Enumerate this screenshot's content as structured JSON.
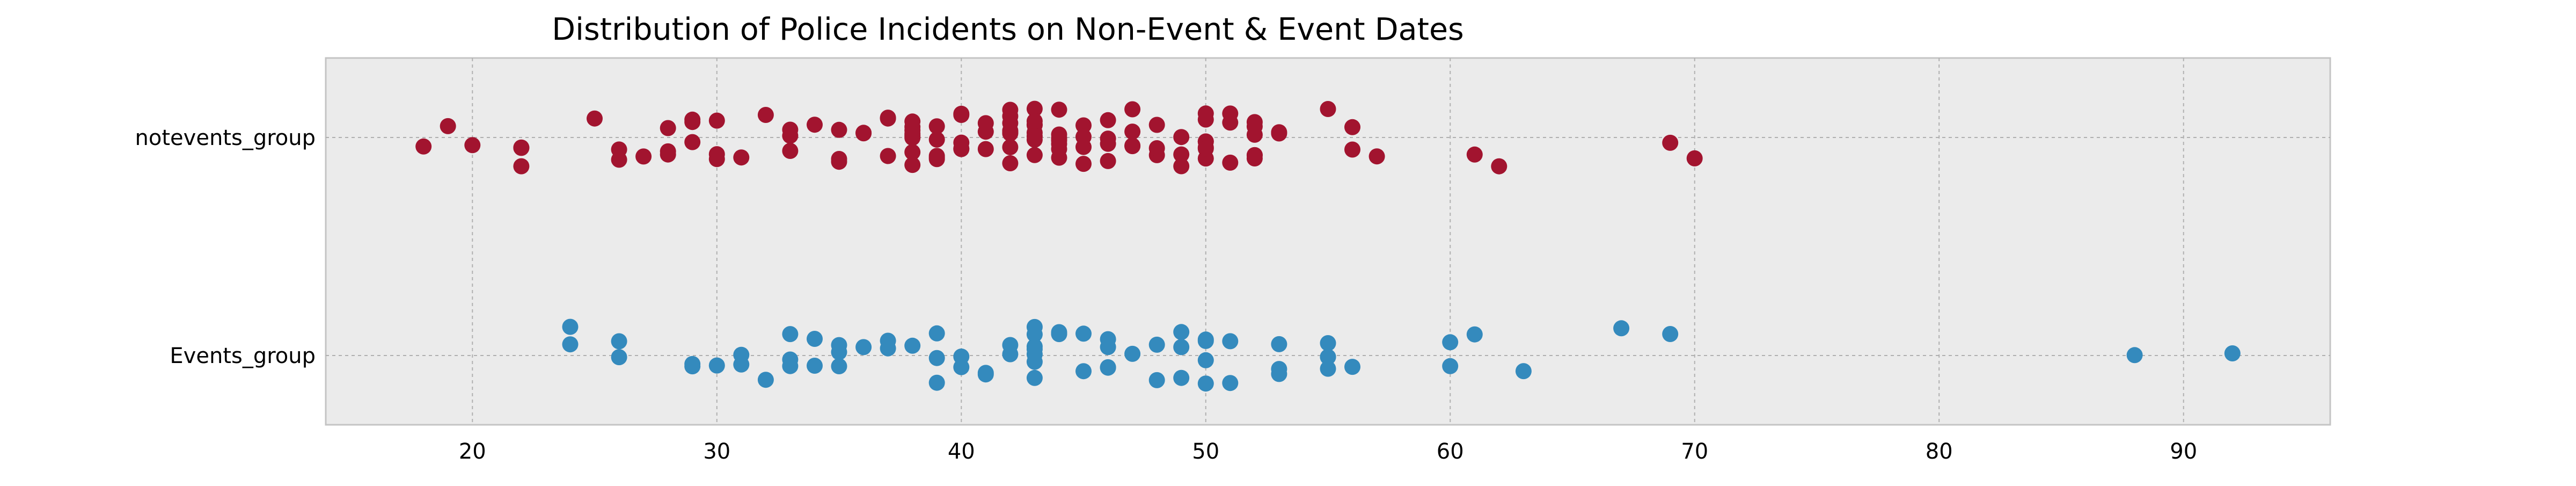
{
  "chart_data": {
    "type": "scatter",
    "title": "Distribution of Police Incidents on Non-Event & Event Dates",
    "xlabel": "",
    "ylabel": "",
    "xlim": [
      14,
      96
    ],
    "xticks": [
      20,
      30,
      40,
      50,
      60,
      70,
      80,
      90
    ],
    "categories": [
      "notevents_group",
      "Events_group"
    ],
    "grid": true,
    "jitter": "random vertical strip jitter around each category row",
    "colors": {
      "plot_background": "#ebebeb",
      "grid": "#b0b0b0"
    },
    "series": [
      {
        "category": "notevents_group",
        "color": "#a2142f",
        "values": [
          18,
          19,
          20,
          22,
          22,
          22,
          25,
          26,
          26,
          27,
          28,
          28,
          28,
          29,
          29,
          29,
          30,
          30,
          30,
          31,
          32,
          33,
          33,
          33,
          34,
          35,
          35,
          35,
          36,
          36,
          37,
          37,
          37,
          38,
          38,
          38,
          38,
          38,
          38,
          38,
          38,
          39,
          39,
          39,
          39,
          39,
          40,
          40,
          40,
          40,
          40,
          41,
          41,
          41,
          42,
          42,
          42,
          42,
          42,
          42,
          42,
          42,
          42,
          43,
          43,
          43,
          43,
          43,
          43,
          43,
          43,
          44,
          44,
          44,
          44,
          44,
          44,
          44,
          45,
          45,
          45,
          45,
          46,
          46,
          46,
          46,
          47,
          47,
          47,
          47,
          48,
          48,
          48,
          49,
          49,
          49,
          50,
          50,
          50,
          50,
          50,
          50,
          50,
          51,
          51,
          51,
          52,
          52,
          52,
          52,
          52,
          52,
          53,
          53,
          55,
          56,
          56,
          57,
          61,
          62,
          69,
          70
        ]
      },
      {
        "category": "Events_group",
        "color": "#348abd",
        "values": [
          24,
          24,
          26,
          26,
          29,
          29,
          30,
          31,
          31,
          32,
          33,
          33,
          33,
          34,
          34,
          35,
          35,
          35,
          36,
          37,
          37,
          38,
          39,
          39,
          39,
          40,
          40,
          41,
          41,
          42,
          42,
          43,
          43,
          43,
          43,
          43,
          43,
          43,
          44,
          44,
          44,
          45,
          45,
          46,
          46,
          46,
          46,
          47,
          48,
          48,
          49,
          49,
          49,
          50,
          50,
          50,
          50,
          51,
          51,
          53,
          53,
          53,
          55,
          55,
          55,
          55,
          56,
          60,
          60,
          61,
          63,
          67,
          69,
          88,
          92
        ]
      }
    ]
  }
}
